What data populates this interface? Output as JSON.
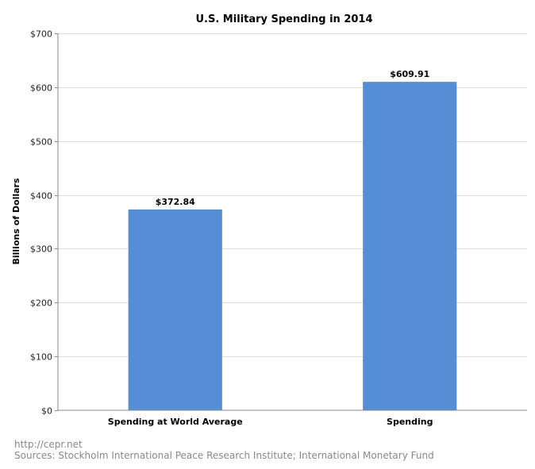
{
  "chart_data": {
    "type": "bar",
    "title": "U.S. Military Spending in 2014",
    "ylabel": "Billions of Dollars",
    "xlabel": "",
    "categories": [
      "Spending at World Average",
      "Spending"
    ],
    "values": [
      372.84,
      609.91
    ],
    "data_labels": [
      "$372.84",
      "$609.91"
    ],
    "ylim": [
      0,
      700
    ],
    "yticks": [
      0,
      100,
      200,
      300,
      400,
      500,
      600,
      700
    ],
    "ytick_labels": [
      "$0",
      "$100",
      "$200",
      "$300",
      "$400",
      "$500",
      "$600",
      "$700"
    ],
    "grid": true,
    "legend": "none",
    "bar_color": "#558ed5"
  },
  "footer": {
    "url": "http://cepr.net",
    "sources": "Sources: Stockholm International Peace Research Institute; International Monetary Fund"
  }
}
